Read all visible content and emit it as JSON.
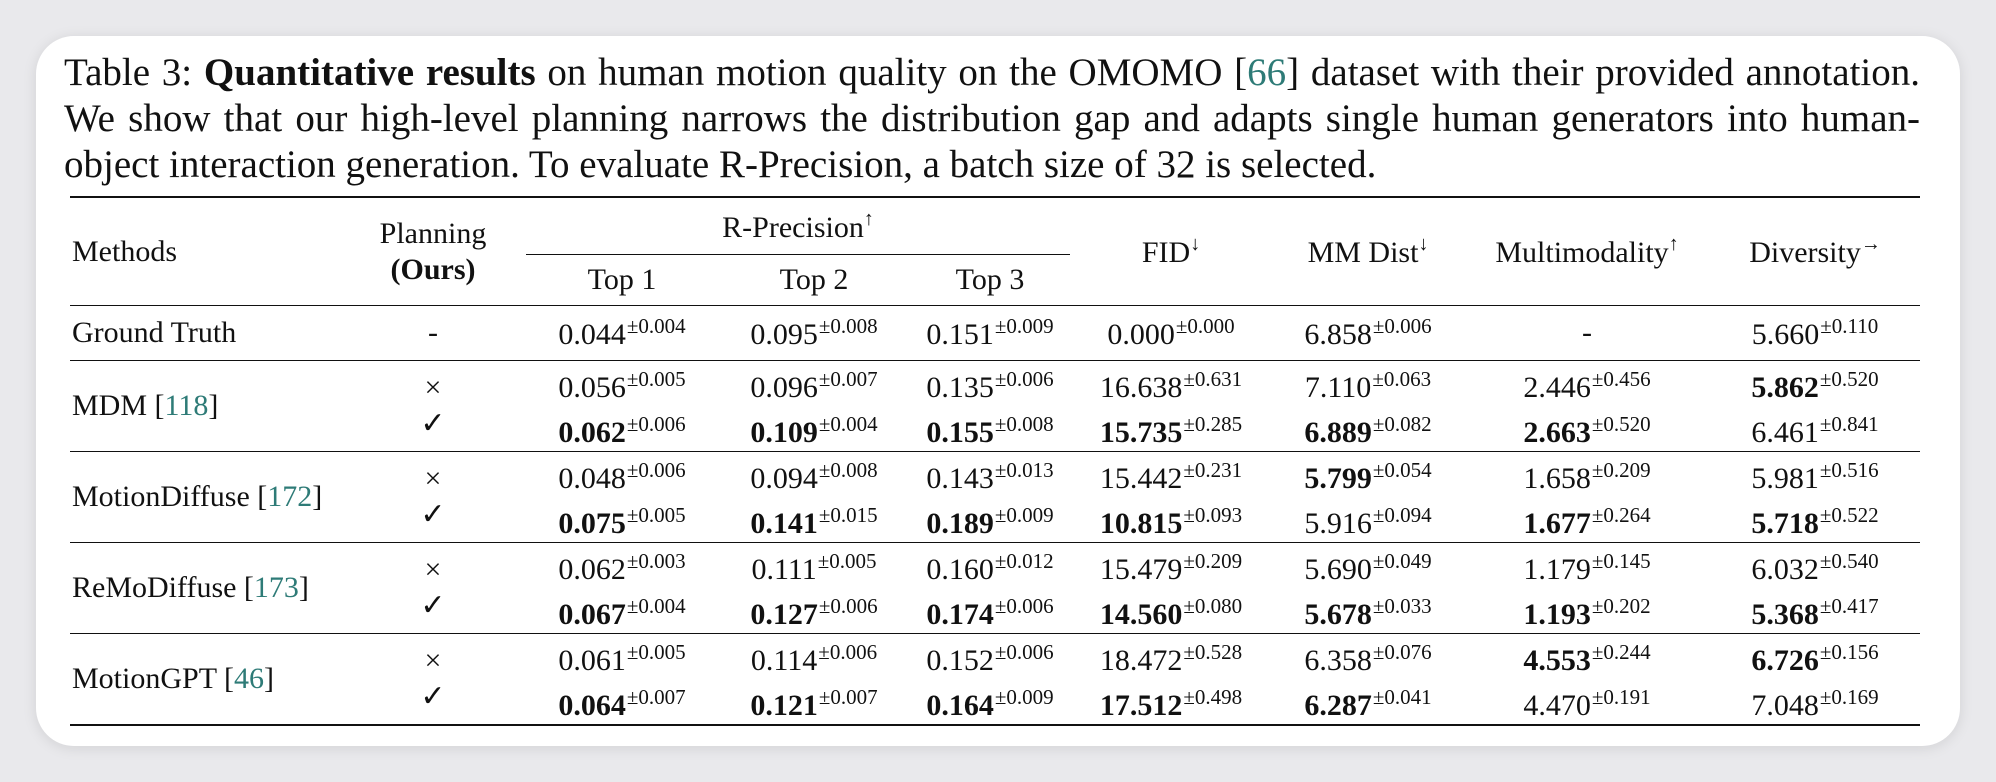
{
  "caption": {
    "label": "Table 3:",
    "bold": "Quantitative results",
    "text_before_ref": "on human motion quality on the OMOMO [",
    "ref": "66",
    "text_after_ref": "] dataset with their provided annotation. We show that our high-level planning narrows the distribution gap and adapts single human generators into human-object interaction generation. To evaluate R-Precision, a batch size of 32 is selected."
  },
  "headers": {
    "methods": "Methods",
    "planning": "Planning",
    "planning_ours": "(Ours)",
    "r_precision": "R-Precision",
    "r_precision_arrow": "↑",
    "top1": "Top 1",
    "top2": "Top 2",
    "top3": "Top 3",
    "fid": "FID",
    "fid_arrow": "↓",
    "mmdist": "MM Dist",
    "mmdist_arrow": "↓",
    "multimodality": "Multimodality",
    "multimodality_arrow": "↑",
    "diversity": "Diversity",
    "diversity_arrow": "→"
  },
  "ground_truth": {
    "method": "Ground Truth",
    "planning": "-",
    "top1": {
      "v": "0.044",
      "sd": "±0.004"
    },
    "top2": {
      "v": "0.095",
      "sd": "±0.008"
    },
    "top3": {
      "v": "0.151",
      "sd": "±0.009"
    },
    "fid": {
      "v": "0.000",
      "sd": "±0.000"
    },
    "mmdist": {
      "v": "6.858",
      "sd": "±0.006"
    },
    "multimodality": "-",
    "diversity": {
      "v": "5.660",
      "sd": "±0.110"
    }
  },
  "groups": [
    {
      "method": "MDM [",
      "ref": "118",
      "close": "]",
      "rows": [
        {
          "planning": "×",
          "top1": {
            "v": "0.056",
            "sd": "±0.005"
          },
          "top2": {
            "v": "0.096",
            "sd": "±0.007"
          },
          "top3": {
            "v": "0.135",
            "sd": "±0.006"
          },
          "fid": {
            "v": "16.638",
            "sd": "±0.631"
          },
          "mmdist": {
            "v": "7.110",
            "sd": "±0.063"
          },
          "multimodality": {
            "v": "2.446",
            "sd": "±0.456"
          },
          "diversity": {
            "v": "5.862",
            "sd": "±0.520"
          }
        },
        {
          "planning": "✓",
          "top1": {
            "v": "0.062",
            "sd": "±0.006"
          },
          "top2": {
            "v": "0.109",
            "sd": "±0.004"
          },
          "top3": {
            "v": "0.155",
            "sd": "±0.008"
          },
          "fid": {
            "v": "15.735",
            "sd": "±0.285"
          },
          "mmdist": {
            "v": "6.889",
            "sd": "±0.082"
          },
          "multimodality": {
            "v": "2.663",
            "sd": "±0.520"
          },
          "diversity": {
            "v": "6.461",
            "sd": "±0.841"
          }
        }
      ]
    },
    {
      "method": "MotionDiffuse [",
      "ref": "172",
      "close": "]",
      "rows": [
        {
          "planning": "×",
          "top1": {
            "v": "0.048",
            "sd": "±0.006"
          },
          "top2": {
            "v": "0.094",
            "sd": "±0.008"
          },
          "top3": {
            "v": "0.143",
            "sd": "±0.013"
          },
          "fid": {
            "v": "15.442",
            "sd": "±0.231"
          },
          "mmdist": {
            "v": "5.799",
            "sd": "±0.054"
          },
          "multimodality": {
            "v": "1.658",
            "sd": "±0.209"
          },
          "diversity": {
            "v": "5.981",
            "sd": "±0.516"
          }
        },
        {
          "planning": "✓",
          "top1": {
            "v": "0.075",
            "sd": "±0.005"
          },
          "top2": {
            "v": "0.141",
            "sd": "±0.015"
          },
          "top3": {
            "v": "0.189",
            "sd": "±0.009"
          },
          "fid": {
            "v": "10.815",
            "sd": "±0.093"
          },
          "mmdist": {
            "v": "5.916",
            "sd": "±0.094"
          },
          "multimodality": {
            "v": "1.677",
            "sd": "±0.264"
          },
          "diversity": {
            "v": "5.718",
            "sd": "±0.522"
          }
        }
      ]
    },
    {
      "method": "ReMoDiffuse [",
      "ref": "173",
      "close": "]",
      "rows": [
        {
          "planning": "×",
          "top1": {
            "v": "0.062",
            "sd": "±0.003"
          },
          "top2": {
            "v": "0.111",
            "sd": "±0.005"
          },
          "top3": {
            "v": "0.160",
            "sd": "±0.012"
          },
          "fid": {
            "v": "15.479",
            "sd": "±0.209"
          },
          "mmdist": {
            "v": "5.690",
            "sd": "±0.049"
          },
          "multimodality": {
            "v": "1.179",
            "sd": "±0.145"
          },
          "diversity": {
            "v": "6.032",
            "sd": "±0.540"
          }
        },
        {
          "planning": "✓",
          "top1": {
            "v": "0.067",
            "sd": "±0.004"
          },
          "top2": {
            "v": "0.127",
            "sd": "±0.006"
          },
          "top3": {
            "v": "0.174",
            "sd": "±0.006"
          },
          "fid": {
            "v": "14.560",
            "sd": "±0.080"
          },
          "mmdist": {
            "v": "5.678",
            "sd": "±0.033"
          },
          "multimodality": {
            "v": "1.193",
            "sd": "±0.202"
          },
          "diversity": {
            "v": "5.368",
            "sd": "±0.417"
          }
        }
      ]
    },
    {
      "method": "MotionGPT [",
      "ref": "46",
      "close": "]",
      "rows": [
        {
          "planning": "×",
          "top1": {
            "v": "0.061",
            "sd": "±0.005"
          },
          "top2": {
            "v": "0.114",
            "sd": "±0.006"
          },
          "top3": {
            "v": "0.152",
            "sd": "±0.006"
          },
          "fid": {
            "v": "18.472",
            "sd": "±0.528"
          },
          "mmdist": {
            "v": "6.358",
            "sd": "±0.076"
          },
          "multimodality": {
            "v": "4.553",
            "sd": "±0.244"
          },
          "diversity": {
            "v": "6.726",
            "sd": "±0.156"
          }
        },
        {
          "planning": "✓",
          "top1": {
            "v": "0.064",
            "sd": "±0.007"
          },
          "top2": {
            "v": "0.121",
            "sd": "±0.007"
          },
          "top3": {
            "v": "0.164",
            "sd": "±0.009"
          },
          "fid": {
            "v": "17.512",
            "sd": "±0.498"
          },
          "mmdist": {
            "v": "6.287",
            "sd": "±0.041"
          },
          "multimodality": {
            "v": "4.470",
            "sd": "±0.191"
          },
          "diversity": {
            "v": "7.048",
            "sd": "±0.169"
          }
        }
      ]
    }
  ],
  "bold_cells": [
    "0.1.top1",
    "0.1.top2",
    "0.1.top3",
    "0.1.fid",
    "0.1.mmdist",
    "0.1.multimodality",
    "0.0.diversity",
    "1.1.top1",
    "1.1.top2",
    "1.1.top3",
    "1.1.fid",
    "1.0.mmdist",
    "1.1.multimodality",
    "1.1.diversity",
    "2.1.top1",
    "2.1.top2",
    "2.1.top3",
    "2.1.fid",
    "2.1.mmdist",
    "2.1.multimodality",
    "2.1.diversity",
    "3.1.top1",
    "3.1.top2",
    "3.1.top3",
    "3.1.fid",
    "3.1.mmdist",
    "3.0.multimodality",
    "3.0.diversity"
  ]
}
